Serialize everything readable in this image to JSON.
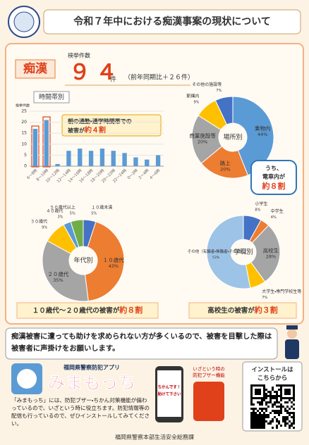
{
  "header": {
    "title": "令和７年中における痴漢事案の現状について"
  },
  "summary": {
    "label": "痴漢",
    "caption": "検挙件数",
    "count": "９４",
    "unit": "件",
    "comparison": "（前年同期比＋２６件）"
  },
  "chart_data": [
    {
      "type": "bar",
      "title": "時間帯別",
      "y_label": "検挙件数",
      "categories": [
        "6～8時",
        "8～10時",
        "10～12時",
        "12～14時",
        "14～16時",
        "16～18時",
        "18～20時",
        "20～22時",
        "22～24時",
        "0～2時",
        "2～4時",
        "4～6時"
      ],
      "values": [
        17,
        21,
        1,
        7,
        8,
        7,
        8,
        7,
        6,
        4,
        3,
        5
      ],
      "color": "#5b9bd5",
      "ylim": [
        0,
        25
      ],
      "yticks": [
        0,
        5,
        10,
        15,
        20,
        25
      ],
      "grid": true,
      "annotation": [
        "朝の通勤・通学時間帯での",
        "被害が",
        "約４割"
      ]
    },
    {
      "type": "pie",
      "title": "場所別",
      "categories": [
        "乗物内",
        "路上",
        "商業施設等",
        "駅構内",
        "その他の施設等"
      ],
      "values": [
        44,
        20,
        20,
        9,
        7
      ],
      "value_labels": [
        "44%",
        "20%",
        "20%",
        "9%",
        "7%"
      ],
      "colors": [
        "#5b9bd5",
        "#ed7d31",
        "#a5a5a5",
        "#ffc000",
        "#4472c4"
      ],
      "annotation": [
        "うち、",
        "電車内が",
        "約８割"
      ]
    },
    {
      "type": "pie",
      "title": "年代別",
      "categories": [
        "１０歳未満",
        "１０歳代",
        "２０歳代",
        "３０歳代",
        "４０歳代",
        "５０歳代以上"
      ],
      "values": [
        5,
        43,
        35,
        9,
        3,
        5
      ],
      "value_labels": [
        "5%",
        "43%",
        "35%",
        "9%",
        "3%",
        "5%"
      ],
      "colors": [
        "#4472c4",
        "#ed7d31",
        "#a5a5a5",
        "#ffc000",
        "#5b9bd5",
        "#70ad47"
      ],
      "annotation": [
        "１０歳代～２０歳代の被害が",
        "約８割"
      ]
    },
    {
      "type": "pie",
      "title": "学職別",
      "categories": [
        "小学生",
        "中学生",
        "高校生",
        "大学生・専門学校生等",
        "その他（有職者・無職者・その他）"
      ],
      "values": [
        8,
        4,
        28,
        7,
        53
      ],
      "value_labels": [
        "8%",
        "4%",
        "28%",
        "7%",
        "53%"
      ],
      "colors": [
        "#4472c4",
        "#ed7d31",
        "#a5a5a5",
        "#ffc000",
        "#9dc3e6"
      ],
      "annotation": [
        "高校生の被害が",
        "約３割"
      ]
    }
  ],
  "message": "痴漢被害に遭っても助けを求められない方が多くいるので、被害を目撃した際は被害者に声掛けをお願いします。",
  "app": {
    "caption": "福岡県警察防犯アプリ",
    "name": "みまもっち",
    "description": "「みまもっち」には、防犯ブザー・ちかん対策機能が備わっているので、いざという時に役立ちます。防犯情報等の配信も行っているので、ぜひインストールしてみてください。",
    "phone_text": [
      "ちかんです！",
      "助けて下さい"
    ],
    "feature": [
      "いざという時の",
      "防犯ブザー機能"
    ]
  },
  "install": [
    "インストールは",
    "こちらから"
  ],
  "footer": "福岡県警察本部生活安全総務課"
}
